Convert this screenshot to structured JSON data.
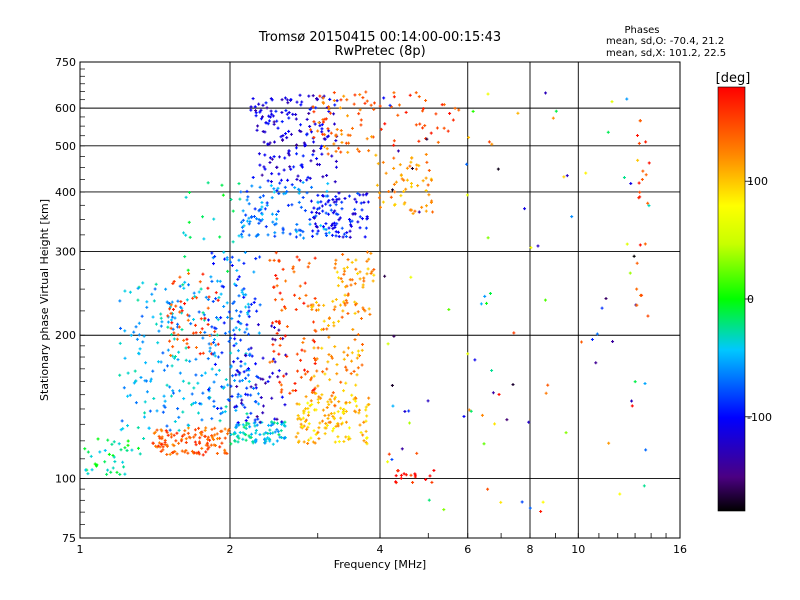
{
  "chart_data": {
    "type": "scatter",
    "title": "Tromsø 20150415 00:14:00-00:15:43",
    "subtitle": "RwPretec (8p)",
    "xlabel": "Frequency [MHz]",
    "ylabel": "Stationary phase Virtual Height [km]",
    "x_scale": "log",
    "y_scale": "log",
    "xlim": [
      1,
      16
    ],
    "ylim": [
      75,
      750
    ],
    "grid": true,
    "x_ticks": [
      1,
      2,
      4,
      6,
      8,
      10,
      16
    ],
    "y_ticks": [
      75,
      100,
      200,
      300,
      400,
      500,
      600,
      750
    ],
    "phase_info": {
      "heading": "Phases",
      "o_line": "mean, sd,O: -70.4, 21.2",
      "x_line": "mean, sd,X: 101.2, 22.5"
    },
    "colorbar": {
      "label": "[deg]",
      "range": [
        -180,
        180
      ],
      "ticks": [
        100,
        0,
        -100
      ]
    },
    "clusters": [
      {
        "f": [
          1.02,
          1.35
        ],
        "h": [
          102,
          122
        ],
        "phase": -20,
        "n": 40
      },
      {
        "f": [
          1.4,
          2.0
        ],
        "h": [
          112,
          128
        ],
        "phase": 140,
        "n": 120
      },
      {
        "f": [
          2.0,
          2.6
        ],
        "h": [
          118,
          132
        ],
        "phase": -40,
        "n": 90
      },
      {
        "f": [
          2.7,
          3.8
        ],
        "h": [
          118,
          150
        ],
        "phase": 100,
        "n": 130
      },
      {
        "f": [
          1.2,
          2.2
        ],
        "h": [
          125,
          260
        ],
        "phase": -50,
        "n": 230
      },
      {
        "f": [
          1.5,
          1.9
        ],
        "h": [
          180,
          270
        ],
        "phase": 150,
        "n": 55
      },
      {
        "f": [
          1.8,
          2.3
        ],
        "h": [
          130,
          300
        ],
        "phase": -75,
        "n": 110
      },
      {
        "f": [
          2.0,
          2.6
        ],
        "h": [
          130,
          220
        ],
        "phase": -120,
        "n": 55
      },
      {
        "f": [
          2.4,
          3.0
        ],
        "h": [
          150,
          300
        ],
        "phase": 150,
        "n": 90
      },
      {
        "f": [
          2.9,
          3.7
        ],
        "h": [
          140,
          240
        ],
        "phase": 115,
        "n": 80
      },
      {
        "f": [
          3.2,
          3.9
        ],
        "h": [
          220,
          300
        ],
        "phase": 115,
        "n": 60
      },
      {
        "f": [
          2.1,
          3.2
        ],
        "h": [
          320,
          420
        ],
        "phase": -65,
        "n": 110
      },
      {
        "f": [
          2.9,
          3.8
        ],
        "h": [
          320,
          400
        ],
        "phase": -100,
        "n": 100
      },
      {
        "f": [
          2.2,
          3.3
        ],
        "h": [
          420,
          640
        ],
        "phase": -115,
        "n": 170
      },
      {
        "f": [
          2.9,
          3.9
        ],
        "h": [
          480,
          650
        ],
        "phase": 135,
        "n": 70
      },
      {
        "f": [
          3.9,
          5.1
        ],
        "h": [
          360,
          480
        ],
        "phase": 115,
        "n": 60
      },
      {
        "f": [
          4.0,
          5.8
        ],
        "h": [
          500,
          650
        ],
        "phase": 150,
        "n": 35
      },
      {
        "f": [
          1.6,
          2.1
        ],
        "h": [
          270,
          420
        ],
        "phase": -25,
        "n": 25
      },
      {
        "f": [
          4.3,
          5.2
        ],
        "h": [
          98,
          104
        ],
        "phase": 170,
        "n": 18
      },
      {
        "f": [
          4.0,
          14.0
        ],
        "h": [
          85,
          660
        ],
        "phase": 0,
        "n": 100,
        "random_phase": true
      },
      {
        "f": [
          13.0,
          13.9
        ],
        "h": [
          200,
          570
        ],
        "phase": 150,
        "n": 22
      }
    ]
  }
}
